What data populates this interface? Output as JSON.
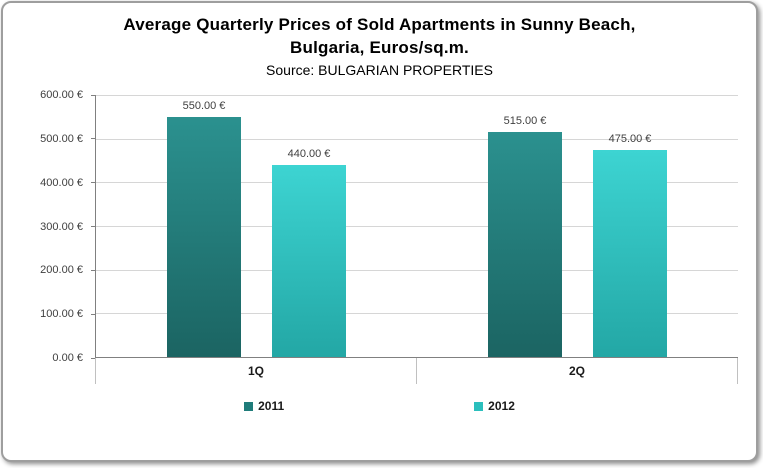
{
  "header": {
    "title_line1": "Average Quarterly Prices of Sold Apartments in Sunny Beach,",
    "title_line2": "Bulgaria, Euros/sq.m.",
    "subtitle": "Source: BULGARIAN PROPERTIES"
  },
  "chart_data": {
    "type": "bar",
    "title": "Average Quarterly Prices of Sold Apartments in Sunny Beach, Bulgaria, Euros/sq.m.",
    "subtitle": "Source: BULGARIAN PROPERTIES",
    "categories": [
      "1Q",
      "2Q"
    ],
    "series": [
      {
        "name": "2011",
        "values": [
          550,
          515
        ],
        "labels": [
          "550.00 €",
          "515.00 €"
        ],
        "color": "#1F7C7A",
        "color_top": "#2B918F",
        "color_bottom": "#1B6462"
      },
      {
        "name": "2012",
        "values": [
          440,
          475
        ],
        "labels": [
          "440.00 €",
          "475.00 €"
        ],
        "color": "#2BBFBD",
        "color_top": "#3DD4D2",
        "color_bottom": "#23A7A5"
      }
    ],
    "xlabel": "",
    "ylabel": "",
    "ylim": [
      0,
      600
    ],
    "ytick_step": 100,
    "ytick_labels": [
      "0.00 €",
      "100.00 €",
      "200.00 €",
      "300.00 €",
      "400.00 €",
      "500.00 €",
      "600.00 €"
    ],
    "grid": true,
    "legend_position": "bottom"
  },
  "colors": {
    "axis": "#808080",
    "gridline": "#d6d6d6",
    "tick_text": "#3f3f3f",
    "frame_border": "#9e9e9e"
  }
}
